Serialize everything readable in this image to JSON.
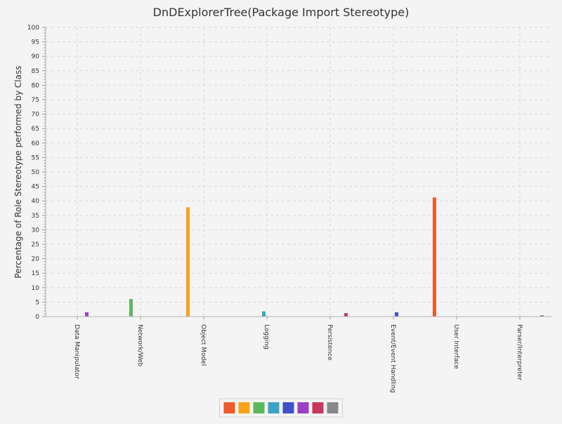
{
  "chart_data": {
    "type": "bar",
    "title": "DnDExplorerTree(Package Import Stereotype)",
    "xlabel": "",
    "ylabel": "Percentage of Role Stereotype performed by Class",
    "ylim": [
      0,
      100
    ],
    "ytick_step": 5,
    "grid": true,
    "legend": "bottom-center",
    "categories": [
      "Data Manipulator",
      "Network/Web",
      "Object Model",
      "Logging",
      "Persistence",
      "Event/Event Handling",
      "User Interface",
      "Parser/Interpreter"
    ],
    "series": [
      {
        "color": "#f05a28",
        "values": [
          0,
          0,
          0,
          0,
          0,
          0,
          41.2,
          0
        ]
      },
      {
        "color": "#f7a21b",
        "values": [
          0,
          0,
          37.8,
          0,
          0,
          0,
          0,
          0
        ]
      },
      {
        "color": "#5cb85c",
        "values": [
          0,
          6.1,
          0,
          0,
          0,
          0,
          0,
          0
        ]
      },
      {
        "color": "#3ca3c7",
        "values": [
          0,
          0,
          0,
          1.8,
          0,
          0,
          0,
          0
        ]
      },
      {
        "color": "#3f51c8",
        "values": [
          0,
          0,
          0,
          0,
          0,
          1.5,
          0,
          0
        ]
      },
      {
        "color": "#9b3fc4",
        "values": [
          1.5,
          0,
          0,
          0,
          0,
          0,
          0,
          0
        ]
      },
      {
        "color": "#c9385e",
        "values": [
          0,
          0,
          0,
          0,
          1.2,
          0,
          0,
          0
        ]
      },
      {
        "color": "#888888",
        "values": [
          0,
          0,
          0,
          0,
          0,
          0,
          0,
          0.5
        ]
      }
    ]
  }
}
